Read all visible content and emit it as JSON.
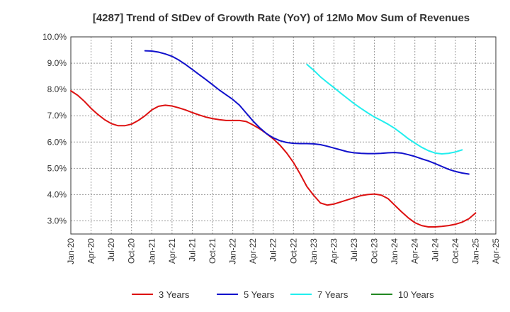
{
  "chart_data": {
    "type": "line",
    "title": "[4287]  Trend of StDev of Growth Rate (YoY) of 12Mo Mov Sum of Revenues",
    "xlabel": "",
    "ylabel": "",
    "x_start": "2020-01",
    "x_end": "2025-04",
    "ylim": [
      2.5,
      10.0
    ],
    "y_ticks": [
      3.0,
      4.0,
      5.0,
      6.0,
      7.0,
      8.0,
      9.0,
      10.0
    ],
    "y_tick_labels": [
      "3.0%",
      "4.0%",
      "5.0%",
      "6.0%",
      "7.0%",
      "8.0%",
      "9.0%",
      "10.0%"
    ],
    "x_ticks": [
      "Jan-20",
      "Apr-20",
      "Jul-20",
      "Oct-20",
      "Jan-21",
      "Apr-21",
      "Jul-21",
      "Oct-21",
      "Jan-22",
      "Apr-22",
      "Jul-22",
      "Oct-22",
      "Jan-23",
      "Apr-23",
      "Jul-23",
      "Oct-23",
      "Jan-24",
      "Apr-24",
      "Jul-24",
      "Oct-24",
      "Jan-25",
      "Apr-25"
    ],
    "grid": true,
    "legend_position": "bottom",
    "series": [
      {
        "name": "3 Years",
        "color": "#dd1111",
        "start": "2020-01",
        "values": [
          7.95,
          7.78,
          7.55,
          7.28,
          7.05,
          6.85,
          6.7,
          6.62,
          6.62,
          6.68,
          6.82,
          7.0,
          7.22,
          7.36,
          7.4,
          7.37,
          7.3,
          7.22,
          7.12,
          7.03,
          6.95,
          6.89,
          6.85,
          6.82,
          6.82,
          6.82,
          6.78,
          6.65,
          6.5,
          6.32,
          6.12,
          5.88,
          5.58,
          5.22,
          4.78,
          4.3,
          3.97,
          3.68,
          3.6,
          3.64,
          3.72,
          3.8,
          3.88,
          3.96,
          4.0,
          4.02,
          3.98,
          3.85,
          3.6,
          3.35,
          3.12,
          2.93,
          2.82,
          2.77,
          2.77,
          2.79,
          2.82,
          2.87,
          2.95,
          3.08,
          3.3
        ]
      },
      {
        "name": "5 Years",
        "color": "#1111cc",
        "start": "2020-12",
        "values": [
          9.47,
          9.46,
          9.42,
          9.35,
          9.26,
          9.12,
          8.95,
          8.76,
          8.57,
          8.38,
          8.18,
          7.98,
          7.8,
          7.62,
          7.4,
          7.1,
          6.8,
          6.54,
          6.32,
          6.16,
          6.05,
          5.98,
          5.95,
          5.94,
          5.94,
          5.93,
          5.9,
          5.84,
          5.77,
          5.7,
          5.63,
          5.59,
          5.57,
          5.56,
          5.56,
          5.57,
          5.59,
          5.6,
          5.58,
          5.52,
          5.45,
          5.36,
          5.28,
          5.18,
          5.07,
          4.96,
          4.88,
          4.82,
          4.78
        ]
      },
      {
        "name": "7 Years",
        "color": "#22eeee",
        "start": "2022-12",
        "values": [
          8.95,
          8.73,
          8.48,
          8.27,
          8.07,
          7.86,
          7.66,
          7.46,
          7.28,
          7.11,
          6.95,
          6.82,
          6.68,
          6.52,
          6.33,
          6.13,
          5.96,
          5.8,
          5.67,
          5.58,
          5.55,
          5.57,
          5.62,
          5.7
        ]
      },
      {
        "name": "10 Years",
        "color": "#228822",
        "start": "2025-01",
        "values": []
      }
    ]
  }
}
